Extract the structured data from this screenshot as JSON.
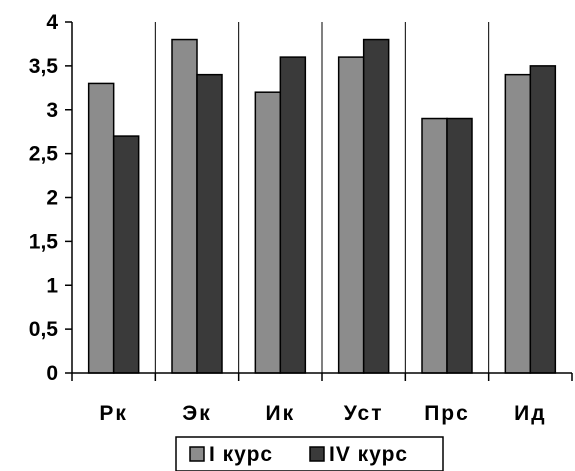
{
  "chart_data": {
    "type": "bar",
    "categories": [
      "Рк",
      "Эк",
      "Ик",
      "Уст",
      "Прс",
      "Ид"
    ],
    "series": [
      {
        "name": "I курс",
        "values": [
          3.3,
          3.8,
          3.2,
          3.6,
          2.9,
          3.4
        ],
        "color": "#8c8c8c"
      },
      {
        "name": "IV курс",
        "values": [
          2.7,
          3.4,
          3.6,
          3.8,
          2.9,
          3.5
        ],
        "color": "#3a3a3a"
      }
    ],
    "ylim": [
      0,
      4
    ],
    "yticks": [
      "0",
      "0,5",
      "1",
      "1,5",
      "2",
      "2,5",
      "3",
      "3,5",
      "4"
    ],
    "grid": "vertical separators between categories",
    "legend": "bottom"
  }
}
